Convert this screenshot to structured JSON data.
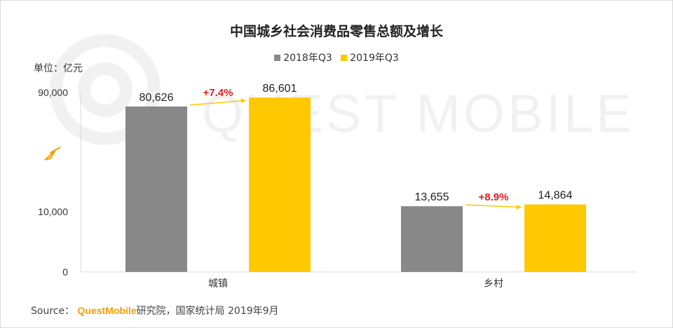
{
  "chart_data": {
    "type": "bar",
    "title": "中国城乡社会消费品零售总额及增长",
    "unit_label": "单位：亿元",
    "categories": [
      "城镇",
      "乡村"
    ],
    "series": [
      {
        "name": "2018年Q3",
        "values": [
          80626,
          13655
        ],
        "labels": [
          "80,626",
          "13,655"
        ],
        "color": "#888888"
      },
      {
        "name": "2019年Q3",
        "values": [
          86601,
          14864
        ],
        "labels": [
          "86,601",
          "14,864"
        ],
        "color": "#ffc800"
      }
    ],
    "growth_labels": [
      "+7.4%",
      "+8.9%"
    ],
    "growth_color": "#e02020",
    "arrow_color": "#ffc800",
    "y_ticks": [
      {
        "label": "0",
        "value": 0
      },
      {
        "label": "10,000",
        "value": 10000
      },
      {
        "label": "90,000",
        "value": 90000
      }
    ],
    "axis_break": true,
    "legend_position": "top-center",
    "grid": false
  },
  "source": {
    "prefix": "Source：",
    "brand": "QuestMobile",
    "rest": "研究院，国家统计局 2019年9月"
  },
  "watermark": "QUEST MOBILE"
}
